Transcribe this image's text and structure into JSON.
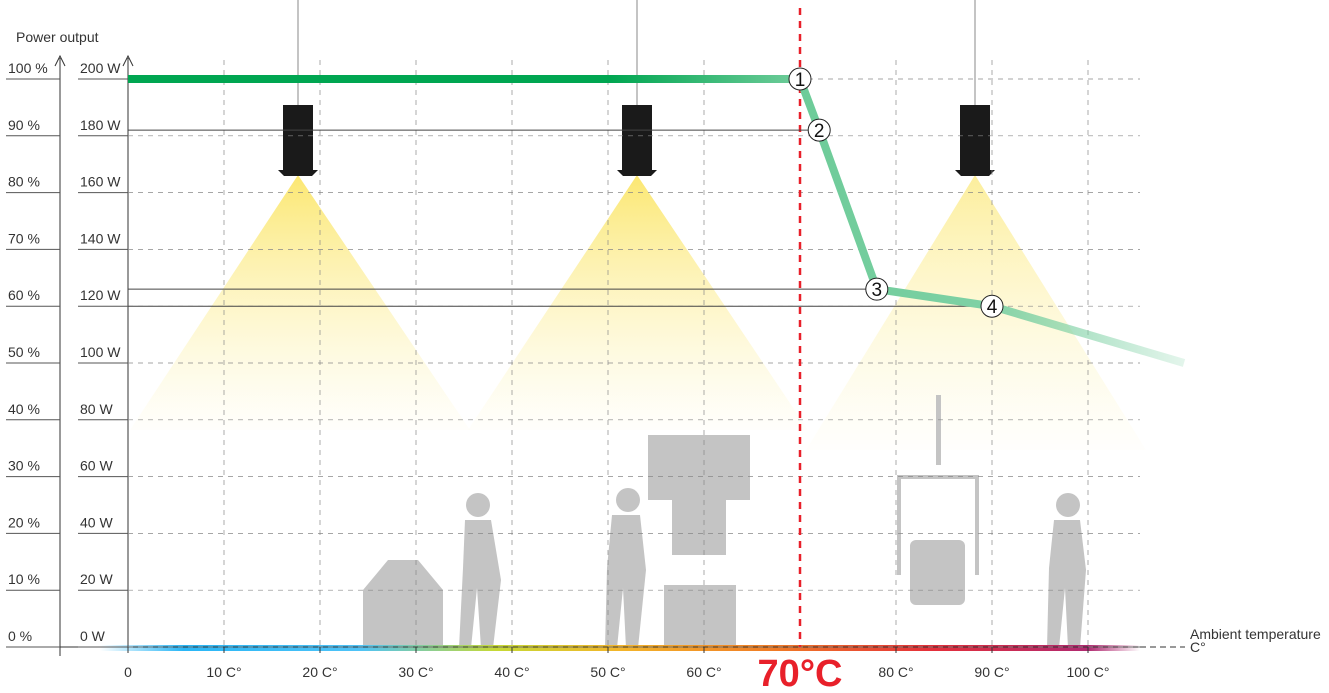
{
  "chart_data": {
    "type": "line",
    "title": "Power output",
    "x_label": "Ambient temperature C°",
    "xlim": [
      0,
      110
    ],
    "ylim": [
      0,
      200
    ],
    "y2lim": [
      0,
      100
    ],
    "xticks": [
      0,
      {
        "value": 10,
        "label": "10 C°"
      },
      {
        "value": 20,
        "label": "20 C°"
      },
      {
        "value": 30,
        "label": "30 C°"
      },
      {
        "value": 40,
        "label": "40 C°"
      },
      {
        "value": 50,
        "label": "50 C°"
      },
      {
        "value": 60,
        "label": "60 C°"
      },
      {
        "value": 80,
        "label": "80 C°"
      },
      {
        "value": 90,
        "label": "90 C°"
      },
      {
        "value": 100,
        "label": "100 C°"
      }
    ],
    "yticks": [
      {
        "value": 0,
        "label": "0 W"
      },
      {
        "value": 20,
        "label": "20 W"
      },
      {
        "value": 40,
        "label": "40 W"
      },
      {
        "value": 60,
        "label": "60 W"
      },
      {
        "value": 80,
        "label": "80 W"
      },
      {
        "value": 100,
        "label": "100 W"
      },
      {
        "value": 120,
        "label": "120 W"
      },
      {
        "value": 140,
        "label": "140 W"
      },
      {
        "value": 160,
        "label": "160 W"
      },
      {
        "value": 180,
        "label": "180 W"
      },
      {
        "value": 200,
        "label": "200 W"
      }
    ],
    "y2ticks": [
      {
        "value": 0,
        "label": "0 %"
      },
      {
        "value": 10,
        "label": "10 %"
      },
      {
        "value": 20,
        "label": "20 %"
      },
      {
        "value": 30,
        "label": "30 %"
      },
      {
        "value": 40,
        "label": "40 %"
      },
      {
        "value": 50,
        "label": "50 %"
      },
      {
        "value": 60,
        "label": "60 %"
      },
      {
        "value": 70,
        "label": "70 %"
      },
      {
        "value": 80,
        "label": "80 %"
      },
      {
        "value": 90,
        "label": "90 %"
      },
      {
        "value": 100,
        "label": "100 %"
      }
    ],
    "threshold": {
      "value": 70,
      "label": "70°C",
      "color": "#e8202a"
    },
    "grid": true,
    "color": "#00a651",
    "x": [
      0,
      70,
      72,
      78,
      90,
      110
    ],
    "values": [
      200,
      200,
      182,
      126,
      120,
      100
    ],
    "point_labels": [
      null,
      "1",
      "2",
      "3",
      "4",
      null
    ]
  }
}
